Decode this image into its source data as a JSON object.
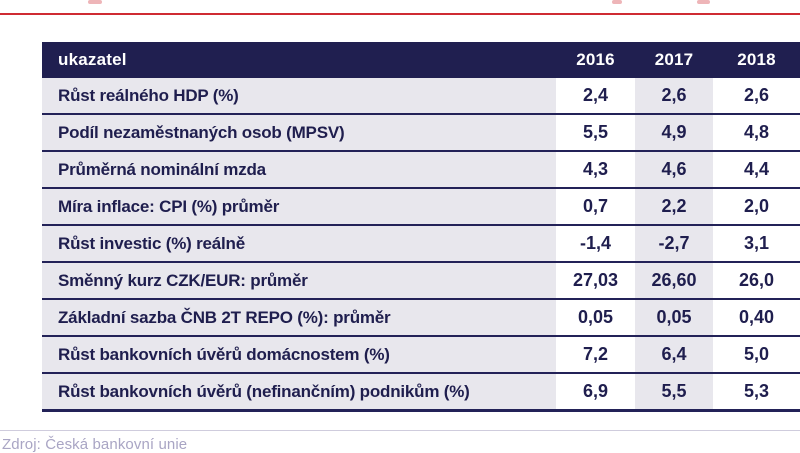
{
  "page": {
    "accent_red": "#cf2b33",
    "header_navy": "#201f50",
    "cell_gray": "#e8e7ed",
    "text_navy": "#1f1e4e",
    "source_color": "#a9a5c4"
  },
  "chart_data": {
    "type": "table",
    "columns": [
      "ukazatel",
      "2016",
      "2017",
      "2018"
    ],
    "rows": [
      {
        "label": "Růst reálného HDP (%)",
        "values": [
          "2,4",
          "2,6",
          "2,6"
        ]
      },
      {
        "label": "Podíl nezaměstnaných osob (MPSV)",
        "values": [
          "5,5",
          "4,9",
          "4,8"
        ]
      },
      {
        "label": "Průměrná nominální mzda",
        "values": [
          "4,3",
          "4,6",
          "4,4"
        ]
      },
      {
        "label": "Míra inflace: CPI (%) průměr",
        "values": [
          "0,7",
          "2,2",
          "2,0"
        ]
      },
      {
        "label": "Růst investic (%) reálně",
        "values": [
          "-1,4",
          "-2,7",
          "3,1"
        ]
      },
      {
        "label": "Směnný kurz CZK/EUR: průměr",
        "values": [
          "27,03",
          "26,60",
          "26,0"
        ]
      },
      {
        "label": "Základní sazba ČNB 2T REPO (%): průměr",
        "values": [
          "0,05",
          "0,05",
          "0,40"
        ]
      },
      {
        "label": "Růst bankovních úvěrů domácnostem (%)",
        "values": [
          "7,2",
          "6,4",
          "5,0"
        ]
      },
      {
        "label": "Růst bankovních úvěrů (nefinančním) podnikům (%)",
        "values": [
          "6,9",
          "5,5",
          "5,3"
        ]
      }
    ],
    "source": "Zdroj: Česká bankovní unie",
    "layout": {
      "shaded_value_column": "2017",
      "grid": "horizontal-rules-only",
      "right_edge_clipped": true
    }
  }
}
